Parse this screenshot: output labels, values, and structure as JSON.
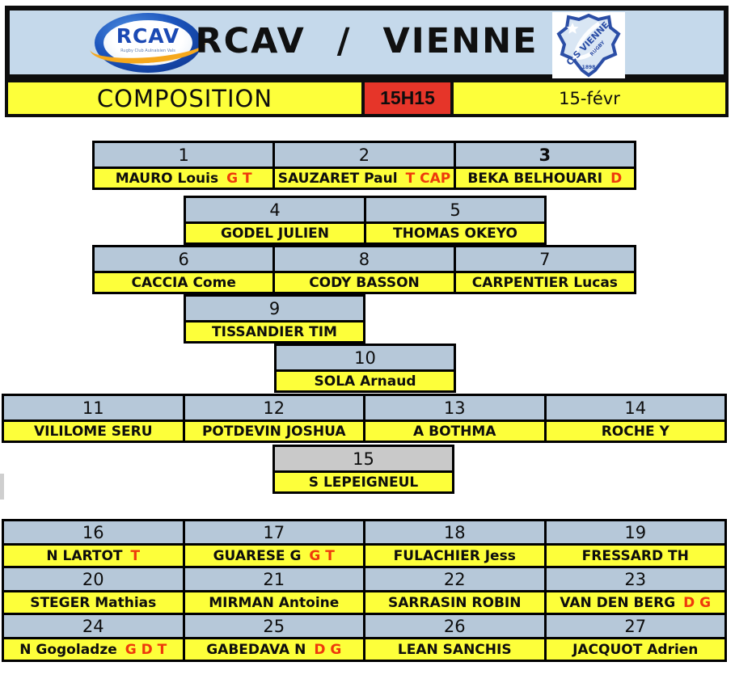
{
  "header": {
    "title": "RCAV / VIENNE",
    "left_logo": {
      "text": "RCAV",
      "subtext": "Rugby Club Aulnaisien Vals"
    },
    "right_logo": {
      "line1": "C.S VIENNE",
      "line2": "RUGBY",
      "year": "1898"
    }
  },
  "infobar": {
    "label": "COMPOSITION",
    "time": "15H15",
    "date": "15-févr"
  },
  "colors": {
    "header_blue": "#c5d9eb",
    "number_cell_blue": "#b6c8d9",
    "yellow": "#fdff3a",
    "time_red": "#e63529",
    "tag_red": "#ee3a0c",
    "gray_15": "#c9c9c9"
  },
  "formation": {
    "blocks": {
      "A": [
        {
          "num": "1",
          "name": "MAURO Louis",
          "tags": "G T"
        },
        {
          "num": "2",
          "name": "SAUZARET Paul",
          "tags": "T CAP"
        },
        {
          "num": "3",
          "name": "BEKA BELHOUARI",
          "tags": "D",
          "bold_num": true
        }
      ],
      "B": [
        {
          "num": "4",
          "name": "GODEL JULIEN"
        },
        {
          "num": "5",
          "name": "THOMAS OKEYO"
        }
      ],
      "C": [
        {
          "num": "6",
          "name": "CACCIA Come"
        },
        {
          "num": "8",
          "name": "CODY BASSON"
        },
        {
          "num": "7",
          "name": "CARPENTIER Lucas"
        }
      ],
      "D": [
        {
          "num": "9",
          "name": "TISSANDIER  TIM"
        }
      ],
      "E": [
        {
          "num": "10",
          "name": "SOLA Arnaud"
        }
      ],
      "F": [
        {
          "num": "11",
          "name": "VILILOME SERU"
        },
        {
          "num": "12",
          "name": "POTDEVIN JOSHUA"
        },
        {
          "num": "13",
          "name": "A BOTHMA"
        },
        {
          "num": "14",
          "name": "ROCHE Y"
        }
      ],
      "G": [
        {
          "num": "15",
          "name": "S LEPEIGNEUL",
          "gray_num": true
        }
      ]
    },
    "bench": [
      [
        {
          "num": "16",
          "name": "N LARTOT",
          "tags": "T"
        },
        {
          "num": "17",
          "name": "GUARESE G",
          "tags": "G T"
        },
        {
          "num": "18",
          "name": "FULACHIER Jess"
        },
        {
          "num": "19",
          "name": "FRESSARD TH"
        }
      ],
      [
        {
          "num": "20",
          "name": "STEGER Mathias"
        },
        {
          "num": "21",
          "name": "MIRMAN Antoine"
        },
        {
          "num": "22",
          "name": "SARRASIN ROBIN"
        },
        {
          "num": "23",
          "name": "VAN DEN BERG",
          "tags": "D G"
        }
      ],
      [
        {
          "num": "24",
          "name": "N Gogoladze",
          "tags": "G D T"
        },
        {
          "num": "25",
          "name": "GABEDAVA N",
          "tags": "D G"
        },
        {
          "num": "26",
          "name": "LEAN SANCHIS"
        },
        {
          "num": "27",
          "name": "JACQUOT Adrien"
        }
      ]
    ]
  }
}
